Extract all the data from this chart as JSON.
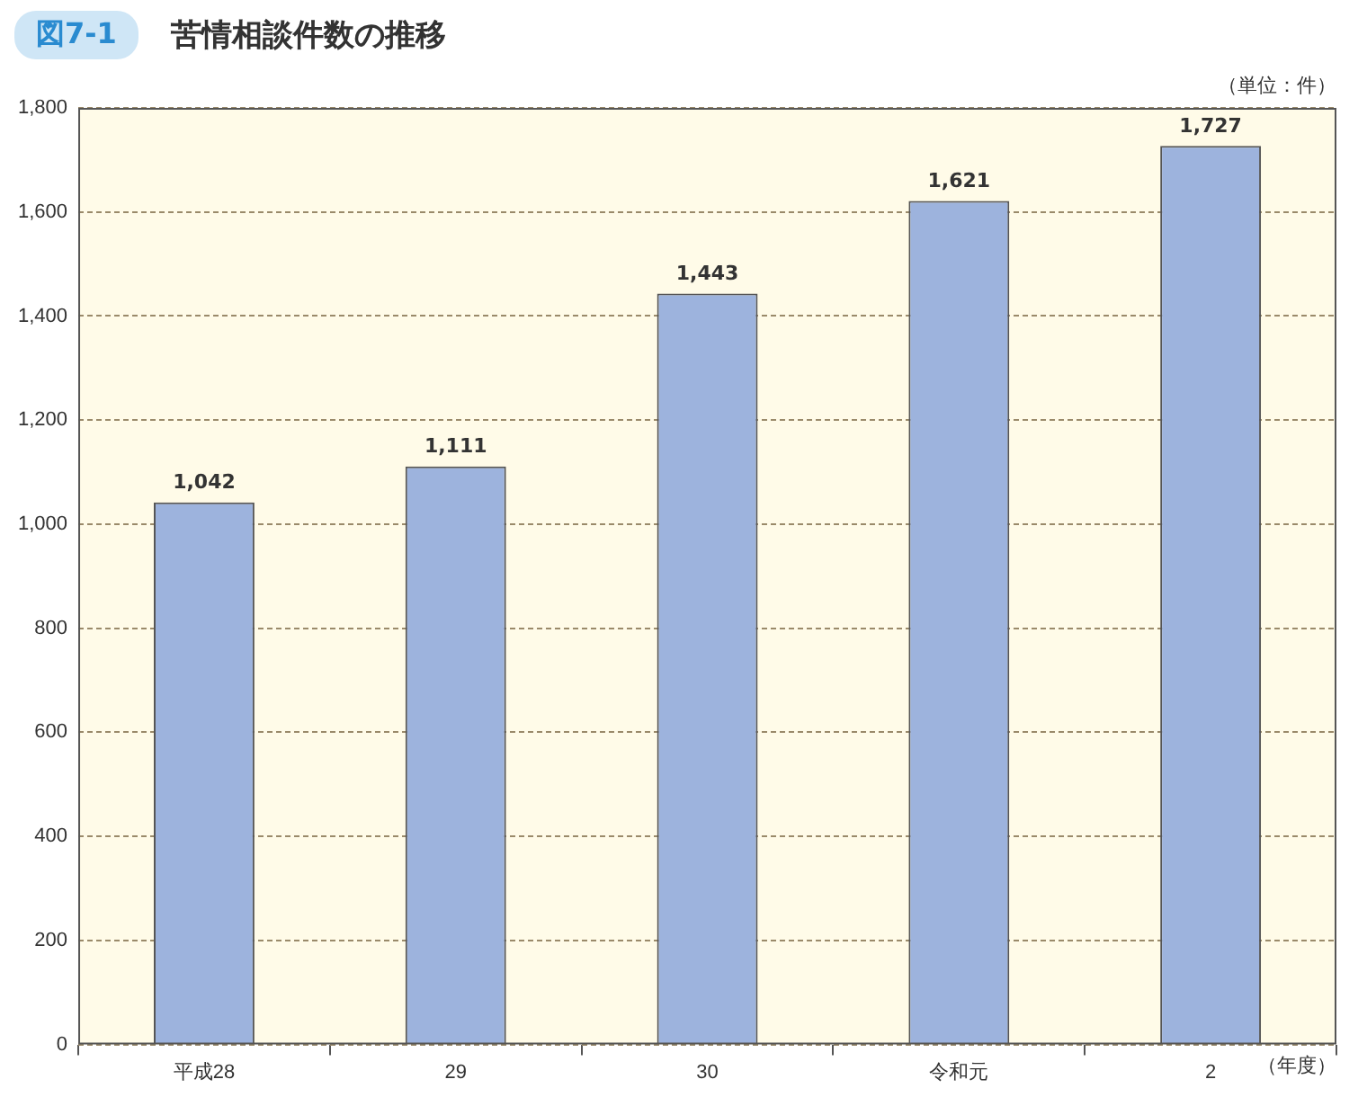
{
  "chart_data": {
    "type": "bar",
    "title": "苦情相談件数の推移",
    "subtitle": "図7-1",
    "categories": [
      "平成28",
      "29",
      "30",
      "令和元",
      "2"
    ],
    "values": [
      1042,
      1111,
      1443,
      1621,
      1727
    ],
    "color": "#9db3dd",
    "value_labels": [
      "1,042",
      "1,111",
      "1,443",
      "1,621",
      "1,727"
    ],
    "ylim": [
      0,
      1800
    ],
    "yticks": [
      0,
      200,
      400,
      600,
      800,
      {
        "value": 1000,
        "label": "1,000"
      },
      {
        "value": 1200,
        "label": "1,200"
      },
      {
        "value": 1400,
        "label": "1,400"
      },
      {
        "value": 1600,
        "label": "1,600"
      },
      {
        "value": 1800,
        "label": "1,800"
      }
    ],
    "grid": "y",
    "legend": false,
    "annotations": [
      "（単位：件）",
      "（年度）"
    ]
  }
}
